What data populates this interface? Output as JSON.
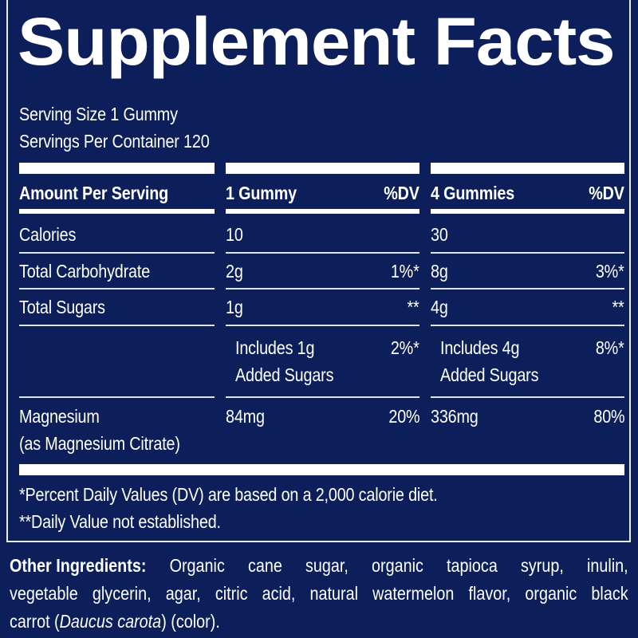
{
  "title": "Supplement Facts",
  "serving_size": "Serving Size 1 Gummy",
  "servings_per_container": "Servings Per Container 120",
  "header": {
    "amount": "Amount Per Serving",
    "col1": "1 Gummy",
    "dv1": "%DV",
    "col2": "4 Gummies",
    "dv2": "%DV"
  },
  "rows": [
    {
      "name": "Calories",
      "v1": "10",
      "dv1": "",
      "v2": "30",
      "dv2": ""
    },
    {
      "name": "Total Carbohydrate",
      "v1": "2g",
      "dv1": "1%*",
      "v2": "8g",
      "dv2": "3%*"
    },
    {
      "name": "Total Sugars",
      "v1": "1g",
      "dv1": "**",
      "v2": "4g",
      "dv2": "**"
    },
    {
      "name": "",
      "v1a": "Includes 1g",
      "v1b": "Added Sugars",
      "dv1": "2%*",
      "v2a": "Includes 4g",
      "v2b": "Added Sugars",
      "dv2": "8%*"
    },
    {
      "name": "Magnesium",
      "name2": "(as Magnesium Citrate)",
      "v1": "84mg",
      "dv1": "20%",
      "v2": "336mg",
      "dv2": "80%"
    }
  ],
  "footnotes": [
    "*Percent Daily Values (DV) are based on a 2,000 calorie diet.",
    "**Daily Value not established."
  ],
  "ingredients": {
    "label": "Other Ingredients:",
    "line1": [
      "Organic",
      "cane",
      "sugar,",
      "organic",
      "tapioca",
      "syrup,",
      "inulin,"
    ],
    "line2": [
      "vegetable",
      "glycerin,",
      "agar,",
      "citric",
      "acid,",
      "natural",
      "watermelon",
      "flavor,",
      "organic",
      "black"
    ],
    "line3_a": "carrot (",
    "line3_italic": "Daucus carota",
    "line3_b": ") (color)."
  }
}
